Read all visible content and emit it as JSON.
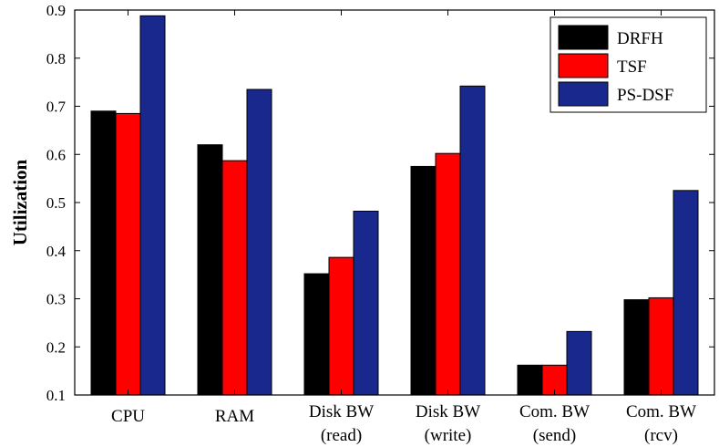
{
  "chart_data": {
    "type": "bar",
    "title": "",
    "xlabel": "",
    "ylabel": "Utilization",
    "ylim": [
      0.1,
      0.9
    ],
    "yticks": [
      "0.1",
      "0.2",
      "0.3",
      "0.4",
      "0.5",
      "0.6",
      "0.7",
      "0.8",
      "0.9"
    ],
    "grid": false,
    "legend_position": "top-right",
    "categories": [
      [
        "CPU"
      ],
      [
        "RAM"
      ],
      [
        "Disk BW",
        "(read)"
      ],
      [
        "Disk BW",
        "(write)"
      ],
      [
        "Com. BW",
        "(send)"
      ],
      [
        "Com. BW",
        "(rcv)"
      ]
    ],
    "series": [
      {
        "name": "DRFH",
        "color": "#000000",
        "values": [
          0.69,
          0.62,
          0.352,
          0.575,
          0.162,
          0.298
        ]
      },
      {
        "name": "TSF",
        "color": "#ff0000",
        "values": [
          0.685,
          0.587,
          0.386,
          0.602,
          0.162,
          0.302
        ]
      },
      {
        "name": "PS-DSF",
        "color": "#18288c",
        "values": [
          0.888,
          0.735,
          0.482,
          0.742,
          0.232,
          0.525
        ]
      }
    ]
  }
}
